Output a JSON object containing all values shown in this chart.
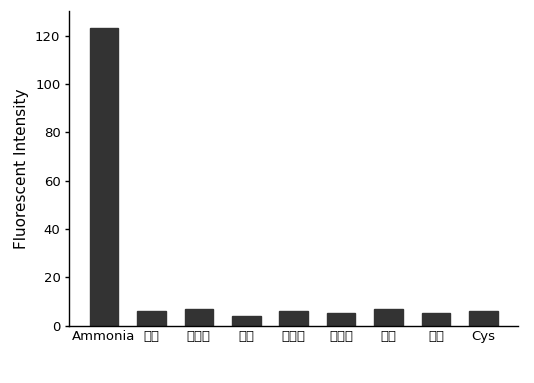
{
  "categories": [
    "Ammonia",
    "甲胺",
    "乙二胺",
    "丙胺",
    "叔丁胺",
    "环己胺",
    "苯胺",
    "萸胺",
    "Cys"
  ],
  "values": [
    123,
    6,
    7,
    4,
    6,
    5,
    7,
    5,
    6
  ],
  "bar_color": "#333333",
  "ylabel": "Fluorescent Intensity",
  "ylim": [
    0,
    130
  ],
  "yticks": [
    0,
    20,
    40,
    60,
    80,
    100,
    120
  ],
  "background_color": "#ffffff",
  "bar_width": 0.6,
  "ylabel_fontsize": 11,
  "tick_fontsize": 9.5
}
